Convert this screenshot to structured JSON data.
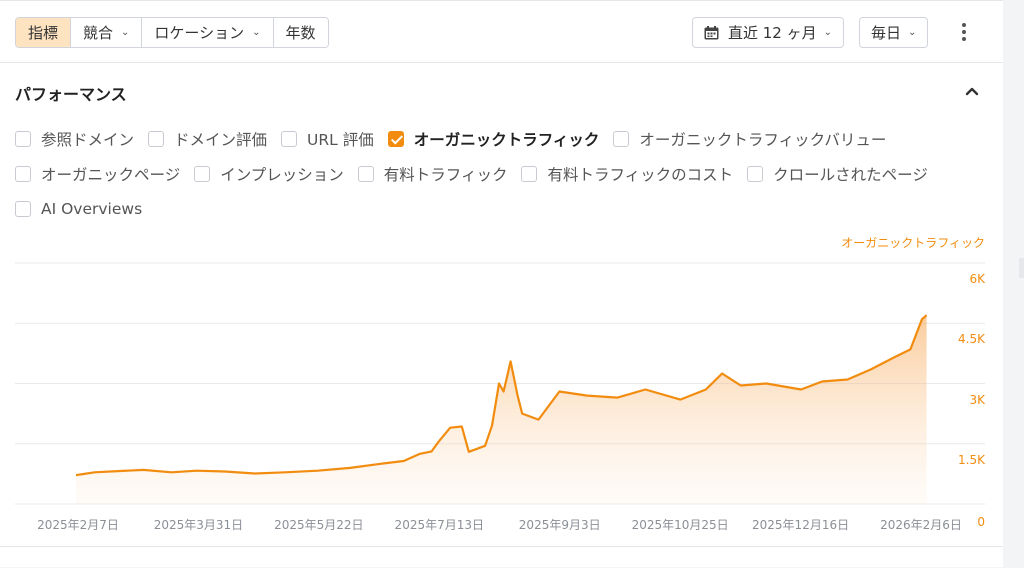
{
  "toolbar": {
    "tabs": [
      {
        "label": "指標",
        "active": true,
        "dropdown": false
      },
      {
        "label": "競合",
        "active": false,
        "dropdown": true
      },
      {
        "label": "ロケーション",
        "active": false,
        "dropdown": true
      },
      {
        "label": "年数",
        "active": false,
        "dropdown": false
      }
    ],
    "date_range": "直近 12 ヶ月",
    "granularity": "毎日",
    "icons": [
      "calendar-icon",
      "chevron-down-icon",
      "kebab-menu-icon"
    ]
  },
  "section": {
    "title": "パフォーマンス",
    "collapse_icon": "chevron-up-icon"
  },
  "metrics": [
    {
      "label": "参照ドメイン",
      "checked": false
    },
    {
      "label": "ドメイン評価",
      "checked": false
    },
    {
      "label": "URL 評価",
      "checked": false
    },
    {
      "label": "オーガニックトラフィック",
      "checked": true
    },
    {
      "label": "オーガニックトラフィックバリュー",
      "checked": false
    },
    {
      "label": "オーガニックページ",
      "checked": false
    },
    {
      "label": "インプレッション",
      "checked": false
    },
    {
      "label": "有料トラフィック",
      "checked": false
    },
    {
      "label": "有料トラフィックのコスト",
      "checked": false
    },
    {
      "label": "クロールされたページ",
      "checked": false
    },
    {
      "label": "AI Overviews",
      "checked": false
    }
  ],
  "colors": {
    "accent": "#f28c0f",
    "active_tab_bg": "#fde3c0"
  },
  "chart_data": {
    "type": "area",
    "series": [
      {
        "name": "オーガニックトラフィック",
        "color": "#f28c0f",
        "points": [
          [
            "2025-02-07",
            720
          ],
          [
            "2025-02-15",
            790
          ],
          [
            "2025-02-25",
            820
          ],
          [
            "2025-03-08",
            850
          ],
          [
            "2025-03-20",
            790
          ],
          [
            "2025-03-31",
            830
          ],
          [
            "2025-04-12",
            810
          ],
          [
            "2025-04-25",
            760
          ],
          [
            "2025-05-08",
            790
          ],
          [
            "2025-05-22",
            830
          ],
          [
            "2025-06-05",
            900
          ],
          [
            "2025-06-18",
            1000
          ],
          [
            "2025-06-28",
            1070
          ],
          [
            "2025-07-05",
            1250
          ],
          [
            "2025-07-10",
            1310
          ],
          [
            "2025-07-13",
            1550
          ],
          [
            "2025-07-18",
            1900
          ],
          [
            "2025-07-23",
            1930
          ],
          [
            "2025-07-26",
            1300
          ],
          [
            "2025-08-02",
            1450
          ],
          [
            "2025-08-05",
            1950
          ],
          [
            "2025-08-08",
            3000
          ],
          [
            "2025-08-10",
            2800
          ],
          [
            "2025-08-13",
            3550
          ],
          [
            "2025-08-16",
            2700
          ],
          [
            "2025-08-18",
            2250
          ],
          [
            "2025-08-25",
            2100
          ],
          [
            "2025-09-03",
            2800
          ],
          [
            "2025-09-15",
            2700
          ],
          [
            "2025-09-28",
            2650
          ],
          [
            "2025-10-10",
            2850
          ],
          [
            "2025-10-25",
            2600
          ],
          [
            "2025-11-05",
            2850
          ],
          [
            "2025-11-12",
            3250
          ],
          [
            "2025-11-20",
            2950
          ],
          [
            "2025-12-01",
            3000
          ],
          [
            "2025-12-16",
            2850
          ],
          [
            "2025-12-25",
            3050
          ],
          [
            "2026-01-05",
            3100
          ],
          [
            "2026-01-15",
            3350
          ],
          [
            "2026-01-25",
            3650
          ],
          [
            "2026-02-01",
            3850
          ],
          [
            "2026-02-06",
            4600
          ],
          [
            "2026-02-08",
            4700
          ]
        ]
      }
    ],
    "x_tick_labels": [
      "2025年2月7日",
      "2025年3月31日",
      "2025年5月22日",
      "2025年7月13日",
      "2025年9月3日",
      "2025年10月25日",
      "2025年12月16日",
      "2026年2月6日"
    ],
    "y_tick_labels": [
      "0",
      "1.5K",
      "3K",
      "4.5K",
      "6K"
    ],
    "y_ticks": [
      0,
      1500,
      3000,
      4500,
      6000
    ],
    "ylim": [
      0,
      6000
    ],
    "xlim": [
      "2025-02-07",
      "2026-02-06"
    ],
    "grid": true,
    "legend": "top-right"
  }
}
